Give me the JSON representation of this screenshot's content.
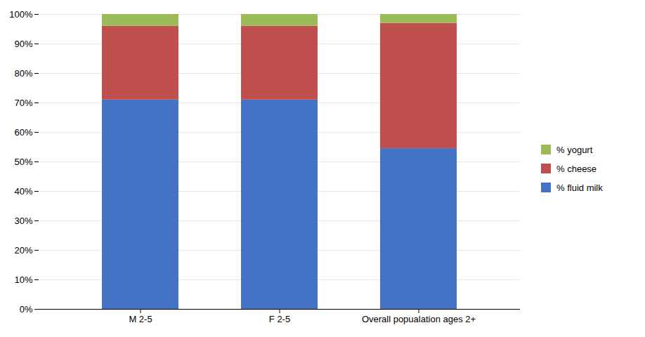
{
  "chart_data": {
    "type": "bar",
    "stacked": true,
    "categories": [
      "M 2-5",
      "F 2-5",
      "Overall popualation ages 2+"
    ],
    "series": [
      {
        "name": "% fluid milk",
        "color": "#4472C4",
        "values": [
          0.71,
          0.71,
          0.545
        ]
      },
      {
        "name": "% cheese",
        "color": "#C0504D",
        "values": [
          0.25,
          0.25,
          0.425
        ]
      },
      {
        "name": "% yogurt",
        "color": "#9BBB59",
        "values": [
          0.04,
          0.04,
          0.03
        ]
      }
    ],
    "ylim": [
      0,
      1.0
    ],
    "yticks": [
      {
        "value": 0.0,
        "label": "0%"
      },
      {
        "value": 0.1,
        "label": "10%"
      },
      {
        "value": 0.2,
        "label": "20%"
      },
      {
        "value": 0.3,
        "label": "30%"
      },
      {
        "value": 0.4,
        "label": "40%"
      },
      {
        "value": 0.5,
        "label": "50%"
      },
      {
        "value": 0.6,
        "label": "60%"
      },
      {
        "value": 0.7,
        "label": "70%"
      },
      {
        "value": 0.8,
        "label": "80%"
      },
      {
        "value": 0.9,
        "label": "90%"
      },
      {
        "value": 1.0,
        "label": "100%"
      }
    ],
    "grid": true,
    "legend": "right"
  }
}
